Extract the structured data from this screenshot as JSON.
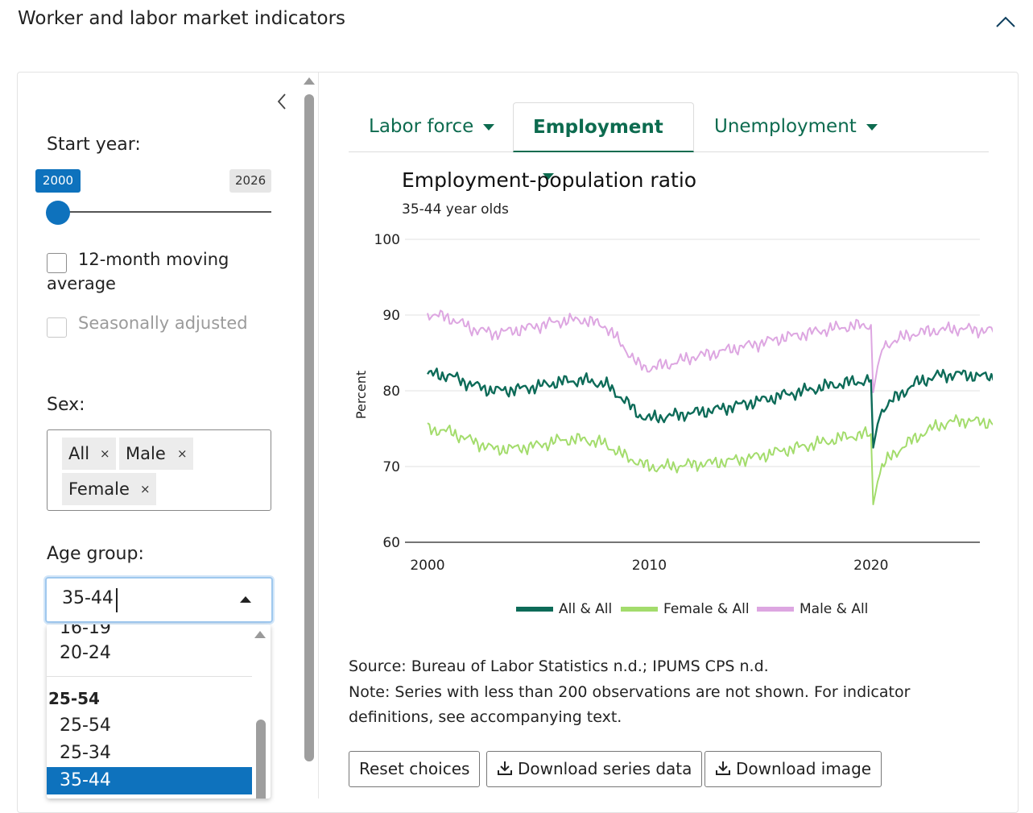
{
  "section": {
    "title": "Worker and labor market indicators",
    "collapse_icon": "chevron-up-icon"
  },
  "sidebar": {
    "collapse_icon": "chevron-left-icon",
    "start_year": {
      "label": "Start year:",
      "from": "2000",
      "to": "2026",
      "accent": "#0e72bd"
    },
    "moving_average": {
      "label": "12-month moving average",
      "checked": false
    },
    "seasonally_adjusted": {
      "label": "Seasonally adjusted",
      "checked": false,
      "disabled": true
    },
    "sex": {
      "label": "Sex:",
      "remove_symbol": "×",
      "chips": [
        "All",
        "Male",
        "Female"
      ]
    },
    "age_group": {
      "label": "Age group:",
      "value": "35-44",
      "options_partial": "16-19",
      "options": [
        {
          "text": "20-24",
          "type": "option"
        },
        {
          "text": "25-54",
          "type": "group"
        },
        {
          "text": "25-54",
          "type": "option"
        },
        {
          "text": "25-34",
          "type": "option"
        },
        {
          "text": "35-44",
          "type": "option",
          "selected": true
        }
      ]
    }
  },
  "tabs": [
    {
      "label": "Labor force",
      "active": false
    },
    {
      "label": "Employment",
      "active": true
    },
    {
      "label": "Unemployment",
      "active": false
    }
  ],
  "chart": {
    "title": "Employment-population ratio",
    "subtitle": "35-44 year olds"
  },
  "chart_data": {
    "type": "line",
    "ylabel": "Percent",
    "xlabel": "",
    "ylim": [
      60,
      100
    ],
    "xlim": [
      2000,
      2026
    ],
    "yticks": [
      60,
      70,
      80,
      90,
      100
    ],
    "xticks": [
      2000,
      2010,
      2020
    ],
    "grid": true,
    "legend_position": "bottom",
    "series": [
      {
        "name": "All & All",
        "color": "#0d6b58",
        "x": [
          2000,
          2001,
          2002,
          2003,
          2004,
          2005,
          2006,
          2007,
          2008,
          2008.8,
          2009.5,
          2010,
          2011,
          2012,
          2013,
          2014,
          2015,
          2016,
          2017,
          2018,
          2019,
          2020.0,
          2020.1,
          2020.3,
          2020.5,
          2021,
          2022,
          2023,
          2024,
          2025,
          2025.6
        ],
        "y": [
          82.2,
          82.0,
          80.8,
          80.0,
          80.2,
          80.6,
          81.2,
          81.4,
          80.9,
          79.0,
          76.9,
          76.3,
          76.7,
          77.1,
          77.5,
          78.1,
          78.7,
          79.4,
          80.0,
          80.6,
          81.1,
          81.4,
          72.5,
          75.6,
          77.6,
          78.8,
          81.0,
          82.0,
          82.2,
          81.9,
          81.8
        ]
      },
      {
        "name": "Female & All",
        "color": "#a3dc6c",
        "x": [
          2000,
          2001,
          2002,
          2003,
          2004,
          2005,
          2006,
          2007,
          2008,
          2008.8,
          2009.5,
          2010,
          2011,
          2012,
          2013,
          2014,
          2015,
          2016,
          2017,
          2018,
          2019,
          2020.0,
          2020.1,
          2020.3,
          2020.5,
          2021,
          2022,
          2023,
          2024,
          2025,
          2025.6
        ],
        "y": [
          75.0,
          74.6,
          73.4,
          72.3,
          72.4,
          72.8,
          73.5,
          73.6,
          73.0,
          71.5,
          70.6,
          69.9,
          70.0,
          70.3,
          70.5,
          70.9,
          71.4,
          72.1,
          72.7,
          73.3,
          74.0,
          74.3,
          65.0,
          68.0,
          70.0,
          71.6,
          73.8,
          75.4,
          76.1,
          75.9,
          75.8
        ]
      },
      {
        "name": "Male & All",
        "color": "#dda6e1",
        "x": [
          2000,
          2001,
          2002,
          2003,
          2004,
          2005,
          2006,
          2007,
          2008,
          2008.8,
          2009.5,
          2010,
          2011,
          2012,
          2013,
          2014,
          2015,
          2016,
          2017,
          2018,
          2019,
          2020.0,
          2020.1,
          2020.3,
          2020.5,
          2021,
          2022,
          2023,
          2024,
          2025,
          2025.6
        ],
        "y": [
          90.2,
          89.6,
          88.2,
          87.6,
          88.0,
          88.6,
          89.2,
          89.4,
          88.6,
          86.0,
          83.4,
          83.0,
          83.6,
          84.5,
          85.0,
          85.7,
          86.3,
          87.0,
          87.5,
          88.1,
          88.5,
          88.7,
          79.8,
          83.2,
          85.6,
          86.6,
          87.6,
          88.0,
          88.2,
          88.0,
          87.9
        ]
      }
    ]
  },
  "notes": {
    "source": "Source: Bureau of Labor Statistics n.d.; IPUMS CPS n.d.",
    "note_line1": "Note: Series with less than 200 observations are not shown. For indicator",
    "note_line2": "definitions, see accompanying text."
  },
  "buttons": {
    "reset": "Reset choices",
    "download_series": "Download series data",
    "download_image": "Download image",
    "download_icon": "download-icon"
  }
}
